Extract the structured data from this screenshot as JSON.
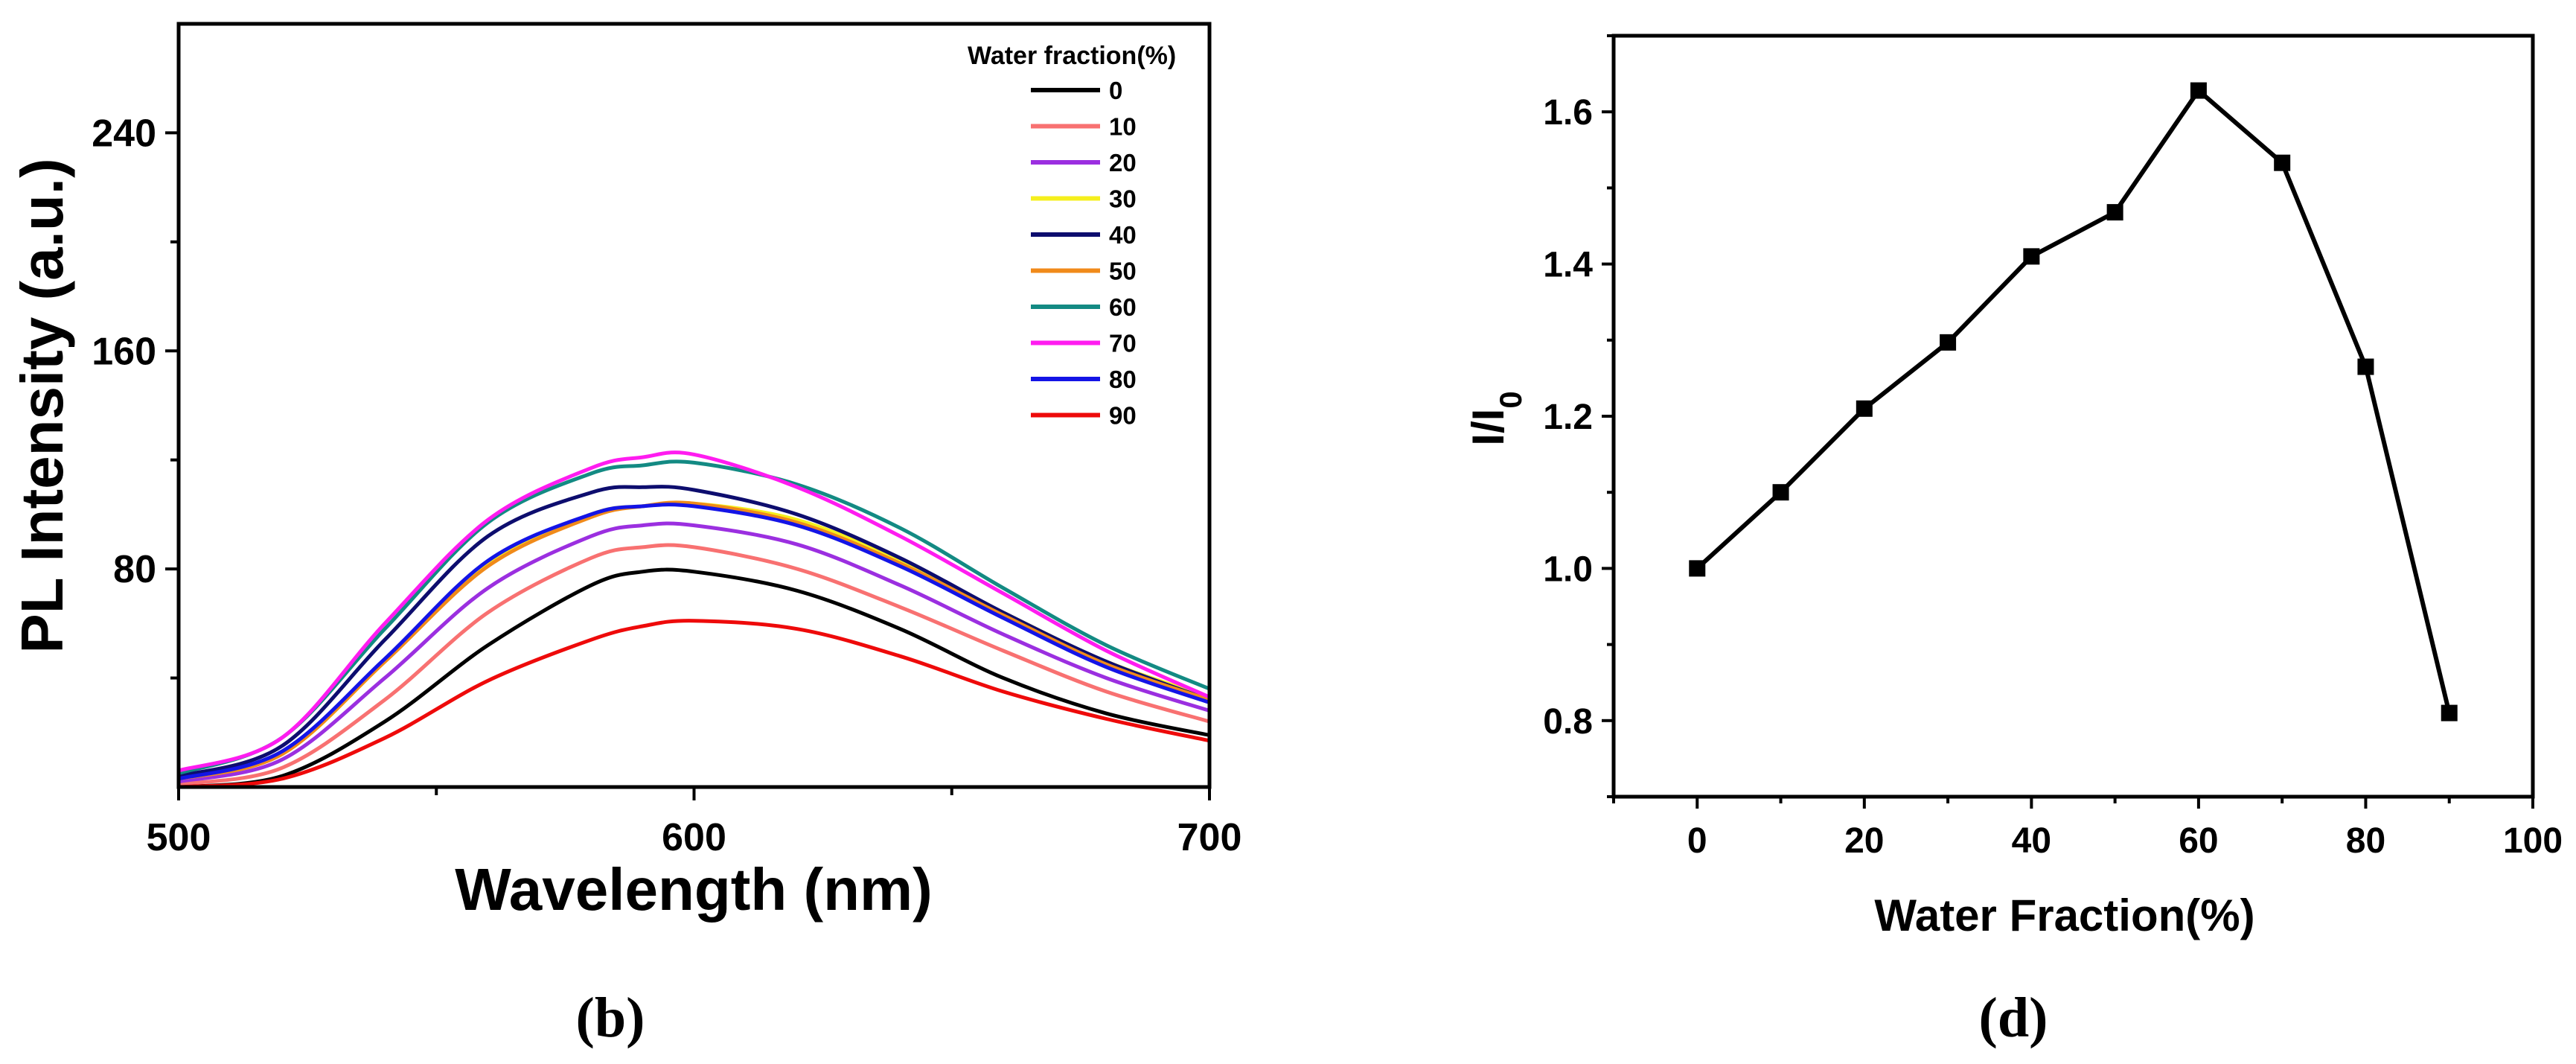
{
  "chart_data": [
    {
      "type": "line",
      "panel_label": "(b)",
      "xlabel": "Wavelength (nm)",
      "ylabel": "PL Intensity (a.u.)",
      "xlim": [
        500,
        700
      ],
      "ylim": [
        0,
        280
      ],
      "xticks": [
        500,
        600,
        700
      ],
      "yticks": [
        80,
        160,
        240
      ],
      "grid": false,
      "legend_title": "Water fraction(%)",
      "legend_position": "top-right",
      "series": [
        {
          "name": "0",
          "color": "#000000",
          "x": [
            500,
            520,
            540,
            560,
            580,
            590,
            600,
            620,
            640,
            660,
            680,
            700
          ],
          "y": [
            0,
            4,
            24,
            52,
            74,
            79,
            79,
            72,
            58,
            40,
            27,
            19
          ]
        },
        {
          "name": "10",
          "color": "#f87171",
          "x": [
            500,
            520,
            540,
            560,
            580,
            590,
            600,
            620,
            640,
            660,
            680,
            700
          ],
          "y": [
            1,
            7,
            32,
            64,
            84,
            88,
            88,
            80,
            66,
            50,
            35,
            24
          ]
        },
        {
          "name": "20",
          "color": "#9b2fe0",
          "x": [
            500,
            520,
            540,
            560,
            580,
            590,
            600,
            620,
            640,
            660,
            680,
            700
          ],
          "y": [
            2,
            10,
            40,
            73,
            92,
            96,
            96,
            89,
            74,
            56,
            40,
            28
          ]
        },
        {
          "name": "30",
          "color": "#f5ef1c",
          "x": [
            500,
            520,
            540,
            560,
            580,
            590,
            600,
            620,
            640,
            660,
            680,
            700
          ],
          "y": [
            3,
            12,
            46,
            82,
            100,
            103,
            104,
            98,
            83,
            64,
            46,
            33
          ]
        },
        {
          "name": "40",
          "color": "#0d0d6e",
          "x": [
            500,
            520,
            540,
            560,
            580,
            590,
            600,
            620,
            640,
            660,
            680,
            700
          ],
          "y": [
            4,
            15,
            54,
            92,
            108,
            110,
            109,
            100,
            84,
            64,
            46,
            32
          ]
        },
        {
          "name": "50",
          "color": "#f08a1a",
          "x": [
            500,
            520,
            540,
            560,
            580,
            590,
            600,
            620,
            640,
            660,
            680,
            700
          ],
          "y": [
            3,
            12,
            46,
            81,
            99,
            103,
            104,
            97,
            82,
            63,
            45,
            32
          ]
        },
        {
          "name": "60",
          "color": "#138a83",
          "x": [
            500,
            520,
            540,
            560,
            580,
            590,
            600,
            620,
            640,
            660,
            680,
            700
          ],
          "y": [
            5,
            18,
            58,
            97,
            115,
            118,
            119,
            111,
            95,
            73,
            52,
            36
          ]
        },
        {
          "name": "70",
          "color": "#ff1cf0",
          "x": [
            500,
            520,
            540,
            560,
            580,
            590,
            600,
            620,
            640,
            660,
            680,
            700
          ],
          "y": [
            6,
            18,
            60,
            98,
            117,
            121,
            122,
            110,
            92,
            71,
            50,
            33
          ]
        },
        {
          "name": "80",
          "color": "#1414e6",
          "x": [
            500,
            520,
            540,
            560,
            580,
            590,
            600,
            620,
            640,
            660,
            680,
            700
          ],
          "y": [
            3,
            13,
            47,
            83,
            100,
            103,
            103,
            96,
            81,
            62,
            44,
            31
          ]
        },
        {
          "name": "90",
          "color": "#ee0a0a",
          "x": [
            500,
            520,
            540,
            560,
            580,
            590,
            600,
            620,
            640,
            660,
            680,
            700
          ],
          "y": [
            0,
            3,
            18,
            39,
            54,
            59,
            61,
            58,
            48,
            35,
            25,
            17
          ]
        }
      ]
    },
    {
      "type": "line",
      "panel_label": "(d)",
      "xlabel": "Water Fraction(%)",
      "ylabel": "I/I0",
      "xlim": [
        -10,
        100
      ],
      "ylim": [
        0.7,
        1.7
      ],
      "xticks": [
        0,
        20,
        40,
        60,
        80,
        100
      ],
      "yticks": [
        0.8,
        1.0,
        1.2,
        1.4,
        1.6
      ],
      "grid": false,
      "series": [
        {
          "name": "",
          "color": "#000000",
          "x": [
            0,
            10,
            20,
            30,
            40,
            50,
            60,
            70,
            80,
            90
          ],
          "y": [
            1.0,
            1.1,
            1.21,
            1.297,
            1.41,
            1.468,
            1.628,
            1.533,
            1.265,
            0.81
          ]
        }
      ]
    }
  ]
}
